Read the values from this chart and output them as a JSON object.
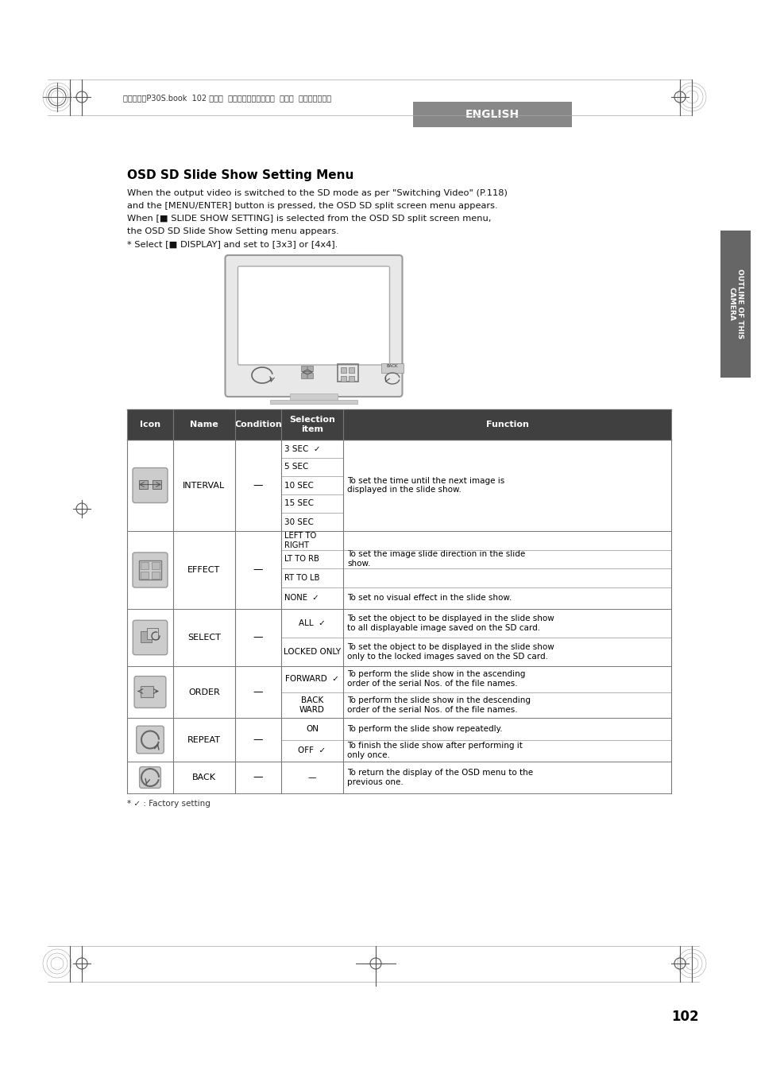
{
  "page_bg": "#ffffff",
  "header_bar_color": "#888888",
  "header_text": "ENGLISH",
  "header_text_color": "#ffffff",
  "sidebar_bg": "#666666",
  "sidebar_text": "OUTLINE OF THIS\nCAMERA",
  "sidebar_text_color": "#ffffff",
  "title": "OSD SD Slide Show Setting Menu",
  "body_lines": [
    "When the output video is switched to the SD mode as per \"Switching Video\" (P.118)",
    "and the [MENU/ENTER] button is pressed, the OSD SD split screen menu appears.",
    "When [■ SLIDE SHOW SETTING] is selected from the OSD SD split screen menu,",
    "the OSD SD Slide Show Setting menu appears.",
    "* Select [■ DISPLAY] and set to [3x3] or [4x4]."
  ],
  "table_header_bg": "#404040",
  "table_header_text_color": "#ffffff",
  "table_border_color": "#777777",
  "footer_note": "* ✓ : Factory setting",
  "page_number": "102",
  "japanese_text": "書画カメラP30S.book  102 ページ  ２００８年１月２４日  木曜日  午後６時３８分"
}
